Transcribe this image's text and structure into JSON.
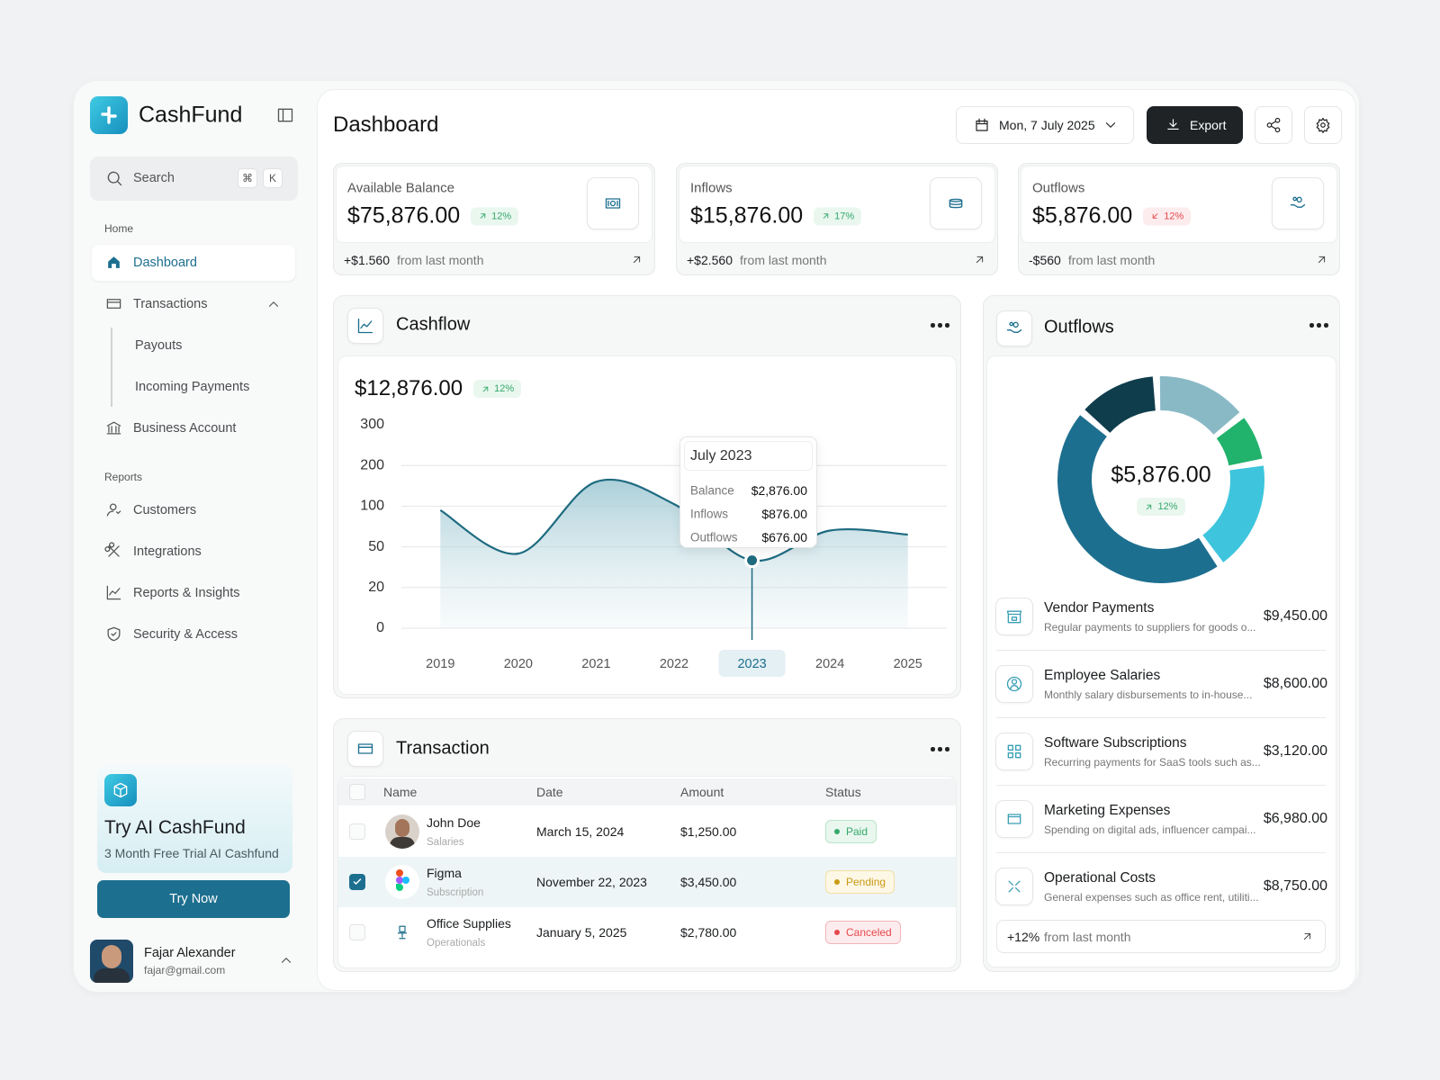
{
  "sidebar": {
    "brand": "CashFund",
    "search": "Search",
    "shortcut": [
      "⌘",
      "K"
    ],
    "home_label": "Home",
    "home_nav": [
      "Dashboard",
      "Transactions",
      "Payouts",
      "Incoming Payments",
      "Business Account"
    ],
    "reports_label": "Reports",
    "reports_nav": [
      "Customers",
      "Integrations",
      "Reports & Insights",
      "Security & Access"
    ],
    "promo": {
      "title": "Try AI CashFund",
      "subtitle": "3 Month Free Trial AI Cashfund",
      "button": "Try Now"
    },
    "user": {
      "name": "Fajar Alexander",
      "email": "fajar@gmail.com"
    }
  },
  "header": {
    "title": "Dashboard",
    "date": "Mon, 7 July 2025",
    "export": "Export"
  },
  "stats": [
    {
      "label": "Available Balance",
      "value": "$75,876.00",
      "change": "12%",
      "trend": "up",
      "delta": "+$1.560",
      "note": "from last month"
    },
    {
      "label": "Inflows",
      "value": "$15,876.00",
      "change": "17%",
      "trend": "up",
      "delta": "+$2.560",
      "note": "from last month"
    },
    {
      "label": "Outflows",
      "value": "$5,876.00",
      "change": "12%",
      "trend": "down",
      "delta": "-$560",
      "note": "from last month"
    }
  ],
  "cashflow": {
    "title": "Cashflow",
    "total": "$12,876.00",
    "change": "12%",
    "tooltip": {
      "title": "July 2023",
      "rows": [
        {
          "label": "Balance",
          "value": "$2,876.00"
        },
        {
          "label": "Inflows",
          "value": "$876.00"
        },
        {
          "label": "Outflows",
          "value": "$676.00"
        }
      ]
    }
  },
  "transactions": {
    "title": "Transaction",
    "columns": [
      "Name",
      "Date",
      "Amount",
      "Status"
    ],
    "rows": [
      {
        "name": "John Doe",
        "category": "Salaries",
        "date": "March 15, 2024",
        "amount": "$1,250.00",
        "status": "Paid",
        "tone": "green",
        "checked": false
      },
      {
        "name": "Figma",
        "category": "Subscription",
        "date": "November 22, 2023",
        "amount": "$3,450.00",
        "status": "Pending",
        "tone": "amber",
        "checked": true
      },
      {
        "name": "Office Supplies",
        "category": "Operationals",
        "date": "January 5, 2025",
        "amount": "$2,780.00",
        "status": "Canceled",
        "tone": "red",
        "checked": false
      }
    ]
  },
  "outflows": {
    "title": "Outflows",
    "total": "$5,876.00",
    "change": "12%",
    "items": [
      {
        "name": "Vendor Payments",
        "desc": "Regular payments to suppliers for goods o...",
        "amount": "$9,450.00"
      },
      {
        "name": "Employee Salaries",
        "desc": "Monthly salary disbursements to in-house...",
        "amount": "$8,600.00"
      },
      {
        "name": "Software Subscriptions",
        "desc": "Recurring payments for SaaS tools such as...",
        "amount": "$3,120.00"
      },
      {
        "name": "Marketing Expenses",
        "desc": "Spending on digital ads, influencer campai...",
        "amount": "$6,980.00"
      },
      {
        "name": "Operational Costs",
        "desc": "General expenses such as office rent, utiliti...",
        "amount": "$8,750.00"
      }
    ],
    "footer_delta": "+12%",
    "footer_note": "from last month"
  },
  "chart_data": [
    {
      "type": "line",
      "categories": [
        "2019",
        "2020",
        "2021",
        "2022",
        "2023",
        "2024",
        "2025"
      ],
      "values": [
        95,
        45,
        160,
        105,
        40,
        70,
        65
      ],
      "ylim": [
        0,
        300
      ],
      "yticks": [
        0,
        20,
        50,
        100,
        200,
        300
      ],
      "color": "#1e6b80",
      "grid": true
    },
    {
      "type": "pie",
      "values": [
        46,
        13,
        15,
        8,
        18
      ],
      "colors": [
        "#1d6f8f",
        "#0f3d4c",
        "#8ab9c6",
        "#21b26b",
        "#3ec5dd"
      ]
    }
  ]
}
